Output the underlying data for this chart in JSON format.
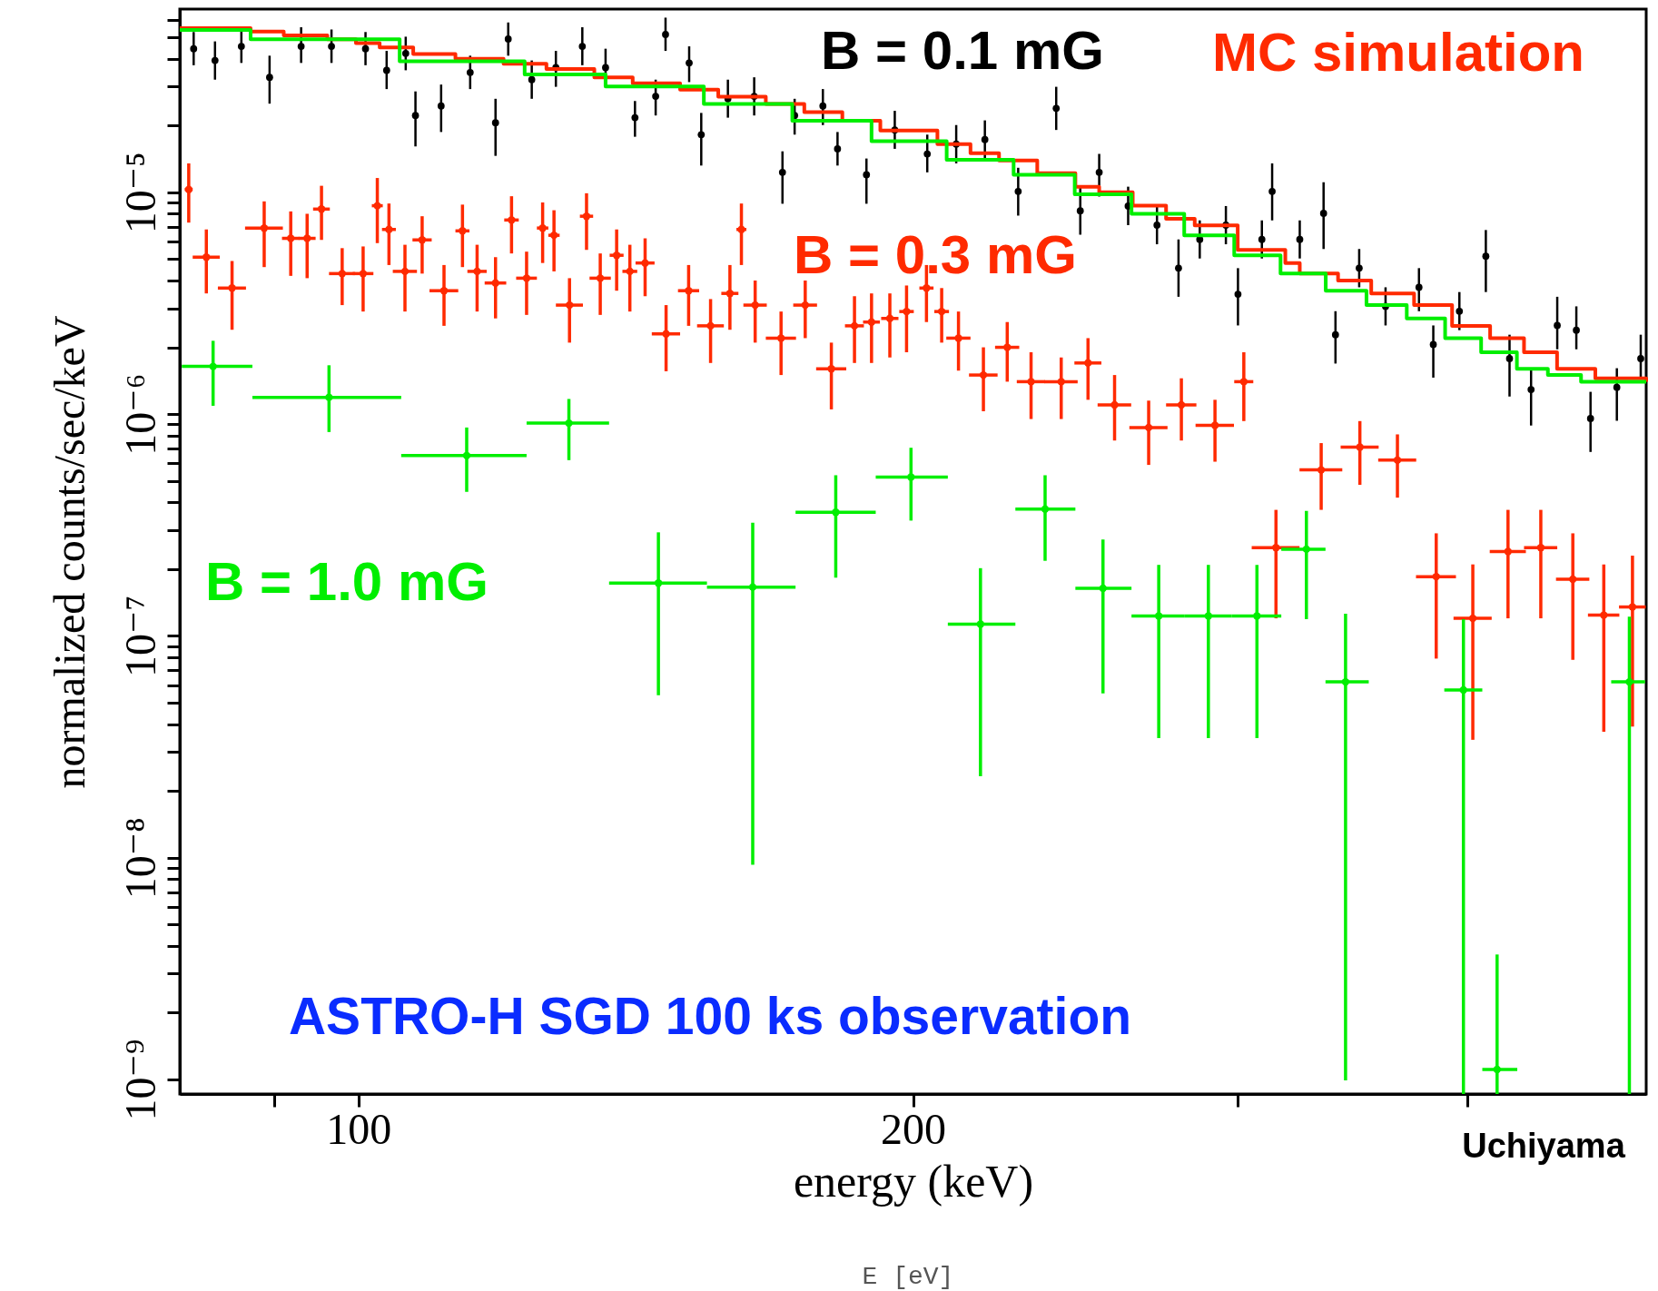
{
  "chart_data": {
    "type": "scatter",
    "xlabel": "energy (keV)",
    "ylabel": "normalized counts/sec/keV",
    "log": "xy",
    "xlim": [
      80,
      500
    ],
    "ylim": [
      8.6e-10,
      6.7e-05
    ],
    "xticks": [
      {
        "value": 90,
        "label": null
      },
      100,
      200,
      {
        "value": 300,
        "label": null
      },
      {
        "value": 400,
        "label": null
      }
    ],
    "yticks": [
      {
        "value": 1e-09,
        "label": "10⁻⁹"
      },
      {
        "value": 2e-09,
        "label": null
      },
      {
        "value": 3e-09,
        "label": null
      },
      {
        "value": 4e-09,
        "label": null
      },
      {
        "value": 5e-09,
        "label": null
      },
      {
        "value": 6e-09,
        "label": null
      },
      {
        "value": 7e-09,
        "label": null
      },
      {
        "value": 8e-09,
        "label": null
      },
      {
        "value": 9e-09,
        "label": null
      },
      {
        "value": 1e-08,
        "label": "10⁻⁸"
      },
      {
        "value": 2e-08,
        "label": null
      },
      {
        "value": 3e-08,
        "label": null
      },
      {
        "value": 4e-08,
        "label": null
      },
      {
        "value": 5e-08,
        "label": null
      },
      {
        "value": 6e-08,
        "label": null
      },
      {
        "value": 7e-08,
        "label": null
      },
      {
        "value": 8e-08,
        "label": null
      },
      {
        "value": 9e-08,
        "label": null
      },
      {
        "value": 1e-07,
        "label": "10⁻⁷"
      },
      {
        "value": 2e-07,
        "label": null
      },
      {
        "value": 3e-07,
        "label": null
      },
      {
        "value": 4e-07,
        "label": null
      },
      {
        "value": 5e-07,
        "label": null
      },
      {
        "value": 6e-07,
        "label": null
      },
      {
        "value": 7e-07,
        "label": null
      },
      {
        "value": 8e-07,
        "label": null
      },
      {
        "value": 9e-07,
        "label": null
      },
      {
        "value": 1e-06,
        "label": "10⁻⁶"
      },
      {
        "value": 2e-06,
        "label": null
      },
      {
        "value": 3e-06,
        "label": null
      },
      {
        "value": 4e-06,
        "label": null
      },
      {
        "value": 5e-06,
        "label": null
      },
      {
        "value": 6e-06,
        "label": null
      },
      {
        "value": 7e-06,
        "label": null
      },
      {
        "value": 8e-06,
        "label": null
      },
      {
        "value": 9e-06,
        "label": null
      },
      {
        "value": 1e-05,
        "label": "10⁻⁵"
      },
      {
        "value": 2e-05,
        "label": null
      },
      {
        "value": 3e-05,
        "label": null
      },
      {
        "value": 4e-05,
        "label": null
      },
      {
        "value": 5e-05,
        "label": null
      },
      {
        "value": 6e-05,
        "label": null
      }
    ],
    "series": [
      {
        "name": "B = 0.1 mG",
        "color": "#000000",
        "x": [
          81.4,
          83.6,
          86.4,
          89.5,
          93.1,
          96.7,
          100.9,
          103.6,
          106.1,
          107.4,
          110.9,
          115.0,
          118.7,
          120.6,
          124.2,
          128.0,
          132.3,
          136.2,
          141.3,
          145.0,
          146.8,
          151.2,
          153.5,
          158.7,
          164.0,
          169.9,
          172.5,
          178.7,
          182.0,
          188.7,
          195.5,
          203.6,
          211.1,
          218.8,
          228.1,
          239.2,
          246.5,
          252.4,
          261.7,
          271.3,
          278.7,
          286.2,
          295.7,
          300.2,
          309.3,
          313.3,
          324.3,
          334.1,
          339.1,
          349.3,
          361.0,
          376.4,
          383.2,
          395.9,
          409.2,
          421.5,
          433.0,
          447.4,
          458.2,
          466.4,
          482.0,
          496.6
        ],
        "values": [
          4.44e-05,
          3.93e-05,
          4.55e-05,
          3.3e-05,
          4.55e-05,
          4.55e-05,
          4.44e-05,
          3.55e-05,
          4.23e-05,
          2.22e-05,
          2.45e-05,
          3.47e-05,
          2.06e-05,
          4.91e-05,
          3.22e-05,
          3.65e-05,
          4.55e-05,
          3.65e-05,
          2.17e-05,
          2.71e-05,
          5.15e-05,
          3.83e-05,
          1.82e-05,
          2.64e-05,
          2.71e-05,
          1.23e-05,
          2.22e-05,
          2.45e-05,
          1.57e-05,
          1.2e-05,
          1.91e-05,
          1.49e-05,
          1.65e-05,
          1.73e-05,
          1.01e-05,
          2.39e-05,
          8.25e-06,
          1.23e-05,
          8.67e-06,
          7.11e-06,
          4.55e-06,
          6.13e-06,
          7.11e-06,
          3.47e-06,
          6.13e-06,
          1.01e-05,
          6.13e-06,
          8.04e-06,
          2.28e-06,
          4.55e-06,
          3.06e-06,
          3.73e-06,
          2.06e-06,
          2.91e-06,
          5.15e-06,
          1.78e-06,
          1.29e-06,
          2.51e-06,
          2.39e-06,
          9.56e-07,
          1.32e-06,
          1.78e-06
        ],
        "errors": [
          [
            3.74e-05,
            5.28e-05
          ],
          [
            3.22e-05,
            4.79e-05
          ],
          [
            3.83e-05,
            5.42e-05
          ],
          [
            2.51e-05,
            4.13e-05
          ],
          [
            3.83e-05,
            5.55e-05
          ],
          [
            3.83e-05,
            5.42e-05
          ],
          [
            3.74e-05,
            5.28e-05
          ],
          [
            2.92e-05,
            4.34e-05
          ],
          [
            3.55e-05,
            5.03e-05
          ],
          [
            1.61e-05,
            2.85e-05
          ],
          [
            1.87e-05,
            3.06e-05
          ],
          [
            2.92e-05,
            4.13e-05
          ],
          [
            1.46e-05,
            2.64e-05
          ],
          [
            4.13e-05,
            5.83e-05
          ],
          [
            2.64e-05,
            3.93e-05
          ],
          [
            2.99e-05,
            4.34e-05
          ],
          [
            3.74e-05,
            5.55e-05
          ],
          [
            2.99e-05,
            4.44e-05
          ],
          [
            1.78e-05,
            2.58e-05
          ],
          [
            2.22e-05,
            3.22e-05
          ],
          [
            4.34e-05,
            6.13e-05
          ],
          [
            3.14e-05,
            4.55e-05
          ],
          [
            1.32e-05,
            2.28e-05
          ],
          [
            2.17e-05,
            3.22e-05
          ],
          [
            2.22e-05,
            3.3e-05
          ],
          [
            8.88e-06,
            1.53e-05
          ],
          [
            1.82e-05,
            2.64e-05
          ],
          [
            2.01e-05,
            2.92e-05
          ],
          [
            1.32e-05,
            1.87e-05
          ],
          [
            8.88e-06,
            1.42e-05
          ],
          [
            1.57e-05,
            2.33e-05
          ],
          [
            1.23e-05,
            1.82e-05
          ],
          [
            1.35e-05,
            2.01e-05
          ],
          [
            1.42e-05,
            2.11e-05
          ],
          [
            7.85e-06,
            1.29e-05
          ],
          [
            1.91e-05,
            2.99e-05
          ],
          [
            6.44e-06,
            1.06e-05
          ],
          [
            9.57e-06,
            1.49e-05
          ],
          [
            7.11e-06,
            1.06e-05
          ],
          [
            5.83e-06,
            8.67e-06
          ],
          [
            3.38e-06,
            6.13e-06
          ],
          [
            5.03e-06,
            7.47e-06
          ],
          [
            5.83e-06,
            8.67e-06
          ],
          [
            2.51e-06,
            4.55e-06
          ],
          [
            5.03e-06,
            7.47e-06
          ],
          [
            7.47e-06,
            1.35e-05
          ],
          [
            5.03e-06,
            7.47e-06
          ],
          [
            5.55e-06,
            1.11e-05
          ],
          [
            1.69e-06,
            2.91e-06
          ],
          [
            3.73e-06,
            5.55e-06
          ],
          [
            2.51e-06,
            3.73e-06
          ],
          [
            2.91e-06,
            4.55e-06
          ],
          [
            1.46e-06,
            2.51e-06
          ],
          [
            2.39e-06,
            3.55e-06
          ],
          [
            3.55e-06,
            6.76e-06
          ],
          [
            1.2e-06,
            2.28e-06
          ],
          [
            8.88e-07,
            1.61e-06
          ],
          [
            1.96e-06,
            3.38e-06
          ],
          [
            1.96e-06,
            3.06e-06
          ],
          [
            6.75e-07,
            1.26e-06
          ],
          [
            9.33e-07,
            1.61e-06
          ],
          [
            1.46e-06,
            2.28e-06
          ]
        ]
      },
      {
        "name": "B = 0.3 mG",
        "color": "#ff2a00",
        "x": [
          80.9,
          82.7,
          85.4,
          88.9,
          91.9,
          93.8,
          95.5,
          98.0,
          100.6,
          102.4,
          103.9,
          106.0,
          108.3,
          111.3,
          113.9,
          116.0,
          118.7,
          121.1,
          123.4,
          125.9,
          127.7,
          130.2,
          133.0,
          135.3,
          138.1,
          140.4,
          143.1,
          146.9,
          151.1,
          155.3,
          159.1,
          161.4,
          164.2,
          169.6,
          174.8,
          180.6,
          185.9,
          189.9,
          194.3,
          198.4,
          203.4,
          207.3,
          211.7,
          218.4,
          225.0,
          231.8,
          240.7,
          248.9,
          257.3,
          268.5,
          279.7,
          291.7,
          302.4,
          314.8,
          333.1,
          349.6,
          366.4,
          384.6,
          402.6,
          420.7,
          438.3,
          456.2,
          474.2,
          491.5
        ],
        "values": [
          1.03e-05,
          5.1e-06,
          3.7e-06,
          6.9e-06,
          6.2e-06,
          6.2e-06,
          8.4e-06,
          4.3e-06,
          4.3e-06,
          8.7e-06,
          6.8e-06,
          4.4e-06,
          6.1e-06,
          3.6e-06,
          6.7e-06,
          4.4e-06,
          3.9e-06,
          7.5e-06,
          4.1e-06,
          6.9e-06,
          6.4e-06,
          3.1e-06,
          7.8e-06,
          4.1e-06,
          5.2e-06,
          4.4e-06,
          4.8e-06,
          2.3e-06,
          3.6e-06,
          2.5e-06,
          3.5e-06,
          6.8e-06,
          3.1e-06,
          2.2e-06,
          3.1e-06,
          1.6e-06,
          2.5e-06,
          2.6e-06,
          2.7e-06,
          2.9e-06,
          3.7e-06,
          2.9e-06,
          2.2e-06,
          1.5e-06,
          2e-06,
          1.4e-06,
          1.4e-06,
          1.7e-06,
          1.1e-06,
          8.7e-07,
          1.1e-06,
          8.9e-07,
          1.4e-06,
          2.5e-07,
          5.6e-07,
          7.1e-07,
          6.2e-07,
          1.85e-07,
          1.2e-07,
          2.4e-07,
          2.5e-07,
          1.8e-07,
          1.24e-07,
          1.35e-07
        ],
        "errors": [
          [
            7.3e-06,
            1.35e-05
          ],
          [
            3.5e-06,
            6.8e-06
          ],
          [
            2.4e-06,
            4.9e-06
          ],
          [
            4.6e-06,
            9.1e-06
          ],
          [
            4.2e-06,
            8.2e-06
          ],
          [
            4.1e-06,
            8e-06
          ],
          [
            6.1e-06,
            1.07e-05
          ],
          [
            3.1e-06,
            5.6e-06
          ],
          [
            2.9e-06,
            5.7e-06
          ],
          [
            5.9e-06,
            1.16e-05
          ],
          [
            4.7e-06,
            8.9e-06
          ],
          [
            2.9e-06,
            5.8e-06
          ],
          [
            4.3e-06,
            7.8e-06
          ],
          [
            2.5e-06,
            4.7e-06
          ],
          [
            4.6e-06,
            8.8e-06
          ],
          [
            2.9e-06,
            5.8e-06
          ],
          [
            2.7e-06,
            5.1e-06
          ],
          [
            5.3e-06,
            9.6e-06
          ],
          [
            2.8e-06,
            5.4e-06
          ],
          [
            4.8e-06,
            9e-06
          ],
          [
            4.4e-06,
            8.3e-06
          ],
          [
            2.1e-06,
            4.1e-06
          ],
          [
            5.5e-06,
            9.9e-06
          ],
          [
            2.8e-06,
            5.3e-06
          ],
          [
            3.6e-06,
            6.8e-06
          ],
          [
            2.9e-06,
            5.8e-06
          ],
          [
            3.4e-06,
            6.2e-06
          ],
          [
            1.56e-06,
            3.1e-06
          ],
          [
            2.5e-06,
            4.7e-06
          ],
          [
            1.7e-06,
            3.3e-06
          ],
          [
            2.4e-06,
            4.7e-06
          ],
          [
            4.7e-06,
            8.9e-06
          ],
          [
            2.1e-06,
            4e-06
          ],
          [
            1.5e-06,
            2.9e-06
          ],
          [
            2.2e-06,
            4e-06
          ],
          [
            1.05e-06,
            2.1e-06
          ],
          [
            1.7e-06,
            3.4e-06
          ],
          [
            1.7e-06,
            3.5e-06
          ],
          [
            1.8e-06,
            3.5e-06
          ],
          [
            1.9e-06,
            3.8e-06
          ],
          [
            2.6e-06,
            4.7e-06
          ],
          [
            2.1e-06,
            3.7e-06
          ],
          [
            1.57e-06,
            2.9e-06
          ],
          [
            1.03e-06,
            2e-06
          ],
          [
            1.4e-06,
            2.6e-06
          ],
          [
            9.5e-07,
            1.9e-06
          ],
          [
            9.5e-07,
            1.8e-06
          ],
          [
            1.16e-06,
            2.2e-06
          ],
          [
            7.6e-07,
            1.5e-06
          ],
          [
            5.9e-07,
            1.15e-06
          ],
          [
            7.6e-07,
            1.45e-06
          ],
          [
            6.1e-07,
            1.16e-06
          ],
          [
            9.3e-07,
            1.9e-06
          ],
          [
            1.2e-07,
            3.7e-07
          ],
          [
            3.7e-07,
            7.4e-07
          ],
          [
            4.8e-07,
            9.3e-07
          ],
          [
            4.2e-07,
            8.1e-07
          ],
          [
            7.9e-08,
            2.9e-07
          ],
          [
            3.4e-08,
            2.1e-07
          ],
          [
            1.2e-07,
            3.7e-07
          ],
          [
            1.2e-07,
            3.7e-07
          ],
          [
            7.8e-08,
            2.9e-07
          ],
          [
            3.7e-08,
            2.1e-07
          ],
          [
            3.9e-08,
            2.3e-07
          ]
        ],
        "xerrors": [
          0.4,
          1.4,
          1.5,
          2.1,
          1.0,
          1.0,
          1.0,
          1.6,
          1.3,
          0.7,
          0.9,
          1.6,
          1.3,
          2.0,
          1.0,
          1.4,
          1.6,
          1.1,
          1.6,
          0.9,
          0.9,
          2.2,
          1.1,
          1.8,
          1.2,
          1.3,
          1.7,
          2.6,
          2.0,
          2.6,
          1.7,
          1.0,
          2.4,
          3.2,
          2.6,
          3.4,
          2.2,
          2.0,
          2.1,
          1.8,
          1.8,
          1.9,
          3.2,
          3.9,
          3.4,
          4.1,
          5.0,
          4.2,
          5.4,
          6.4,
          5.3,
          7.0,
          3.6,
          9.4,
          8.9,
          8.3,
          8.7,
          9.6,
          9.6,
          9.5,
          9.1,
          9.5,
          9.3,
          8.2
        ]
      },
      {
        "name": "B = 1.0 mG",
        "color": "#00ee00",
        "x": [
          83.4,
          96.4,
          114.5,
          130.1,
          145.5,
          163.7,
          181.6,
          199.5,
          217.6,
          235.9,
          253.6,
          271.9,
          289.3,
          307.4,
          327.0,
          343.4,
          397.9,
          415.0,
          489.6
        ],
        "values": [
          1.64e-06,
          1.19e-06,
          6.5e-07,
          9.1e-07,
          1.73e-07,
          1.66e-07,
          3.61e-07,
          5.2e-07,
          1.13e-07,
          3.73e-07,
          1.64e-07,
          1.23e-07,
          1.23e-07,
          1.23e-07,
          2.46e-07,
          6.2e-08,
          5.7e-08,
          1.11e-09,
          6.2e-08
        ],
        "errors": [
          [
            1.09e-06,
            2.14e-06
          ],
          [
            8.3e-07,
            1.66e-06
          ],
          [
            4.46e-07,
            8.7e-07
          ],
          [
            6.2e-07,
            1.17e-06
          ],
          [
            5.4e-08,
            2.93e-07
          ],
          [
            9.3e-09,
            3.24e-07
          ],
          [
            1.83e-07,
            5.3e-07
          ],
          [
            3.31e-07,
            7.05e-07
          ],
          [
            2.33e-08,
            2.02e-07
          ],
          [
            2.18e-07,
            5.3e-07
          ],
          [
            5.5e-08,
            2.72e-07
          ],
          [
            3.46e-08,
            2.09e-07
          ],
          [
            3.46e-08,
            2.09e-07
          ],
          [
            3.46e-08,
            2.09e-07
          ],
          [
            1.19e-07,
            3.66e-07
          ],
          [
            9.9e-10,
            1.26e-07
          ],
          [
            8.6e-10,
            1.19e-07
          ],
          [
            8.6e-10,
            3.66e-09
          ],
          [
            8.6e-10,
            1.22e-07
          ]
        ],
        "xerrors": [
          [
            80.2,
            87.6
          ],
          [
            87.6,
            105.5
          ],
          [
            105.5,
            123.4
          ],
          [
            123.4,
            136.8
          ],
          [
            136.8,
            154.6
          ],
          [
            154.6,
            172.7
          ],
          [
            172.7,
            190.9
          ],
          [
            190.9,
            208.9
          ],
          [
            208.9,
            227.3
          ],
          [
            227.3,
            245.0
          ],
          [
            245.0,
            262.8
          ],
          [
            262.8,
            280.7
          ],
          [
            280.7,
            297.8
          ],
          [
            297.8,
            316.9
          ],
          [
            316.9,
            334.9
          ],
          [
            334.9,
            353.5
          ],
          [
            388.5,
            407.4
          ],
          [
            407.4,
            425.6
          ],
          [
            478.6,
            499.3
          ]
        ]
      },
      {
        "name": "MC simulation",
        "type": "step",
        "color": "#ff2a00",
        "x": [
          80,
          87.4,
          91.1,
          96.2,
          99.7,
          102.7,
          107.1,
          112.9,
          119.9,
          126.5,
          134.3,
          140.9,
          149.5,
          156.8,
          166.4,
          174.6,
          183.1,
          192.0,
          206.2,
          214.9,
          222.7,
          233.6,
          245.0,
          252.4,
          263.2,
          274.4,
          284.4,
          300.1,
          318.5,
          324.3,
          340.2,
          354.6,
          374.1,
          392.3,
          411.4,
          429.2,
          447.3,
          469.2,
          500
        ],
        "values": [
          5.5e-05,
          5.3e-05,
          5.1e-05,
          4.9e-05,
          4.7e-05,
          4.5e-05,
          4.2e-05,
          4e-05,
          3.8e-05,
          3.6e-05,
          3.3e-05,
          3.1e-05,
          2.9e-05,
          2.7e-05,
          2.5e-05,
          2.3e-05,
          2.1e-05,
          1.9e-05,
          1.65e-05,
          1.5e-05,
          1.39e-05,
          1.22e-05,
          1.06e-05,
          1e-05,
          8.7e-06,
          7.6e-06,
          7.1e-06,
          5.5e-06,
          4.8e-06,
          4.3e-06,
          4e-06,
          3.5e-06,
          3.1e-06,
          2.5e-06,
          2.2e-06,
          1.9e-06,
          1.6e-06,
          1.45e-06,
          1.4e-06
        ]
      },
      {
        "type": "step",
        "color": "#00ee00",
        "x": [
          80,
          87.4,
          105.3,
          123.1,
          136.2,
          154.0,
          172.0,
          189.9,
          208.6,
          226.8,
          244.8,
          262.8,
          280.7,
          298.8,
          316.6,
          335.0,
          352.5,
          370.7,
          388.9,
          406.8,
          425.4,
          442.2,
          460.9,
          500
        ],
        "values": [
          5.4e-05,
          4.9e-05,
          3.9e-05,
          3.4e-05,
          3e-05,
          2.5e-05,
          2.1e-05,
          1.7e-05,
          1.4e-05,
          1.2e-05,
          9.8e-06,
          8e-06,
          6.4e-06,
          5.2e-06,
          4.3e-06,
          3.6e-06,
          3.1e-06,
          2.7e-06,
          2.2e-06,
          1.9e-06,
          1.6e-06,
          1.5e-06,
          1.4e-06,
          1.4e-06
        ]
      }
    ],
    "annotations": [
      "ASTRO-H SGD 100 ks observation",
      "Uchiyama",
      "E [eV]"
    ]
  }
}
